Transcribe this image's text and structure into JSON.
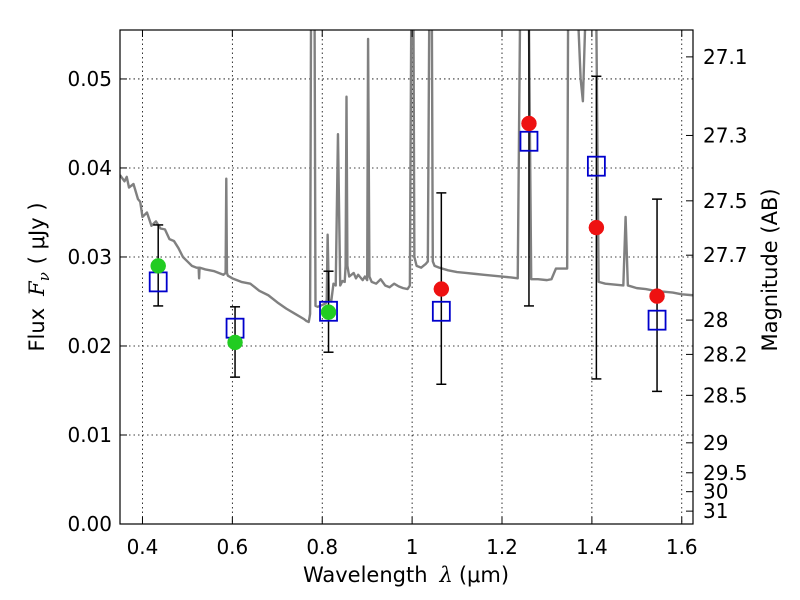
{
  "chart_data": {
    "type": "scatter",
    "title": "",
    "xlabel": "Wavelength",
    "xlabel_symbol": "λ",
    "xlabel_unit": "(μm)",
    "ylabel": "Flux",
    "ylabel_symbol": "F",
    "ylabel_subscript": "ν",
    "ylabel_unit": "( μJy )",
    "y2label": "Magnitude (AB)",
    "xlim": [
      0.35,
      1.625
    ],
    "ylim": [
      0.0,
      0.0555
    ],
    "grid": true,
    "x_ticks": [
      0.4,
      0.6,
      0.8,
      1.0,
      1.2,
      1.4,
      1.6
    ],
    "x_tick_labels": [
      "0.4",
      "0.6",
      "0.8",
      "1",
      "1.2",
      "1.4",
      "1.6"
    ],
    "y_ticks": [
      0.0,
      0.01,
      0.02,
      0.03,
      0.04,
      0.05
    ],
    "y_tick_labels": [
      "0.00",
      "0.01",
      "0.02",
      "0.03",
      "0.04",
      "0.05"
    ],
    "y2_ticks": [
      {
        "label": "27.1",
        "mag": 27.1
      },
      {
        "label": "27.3",
        "mag": 27.3
      },
      {
        "label": "27.5",
        "mag": 27.5
      },
      {
        "label": "27.7",
        "mag": 27.7
      },
      {
        "label": "28",
        "mag": 28.0
      },
      {
        "label": "28.2",
        "mag": 28.2
      },
      {
        "label": "28.5",
        "mag": 28.5
      },
      {
        "label": "29",
        "mag": 29.0
      },
      {
        "label": "29.5",
        "mag": 29.5
      },
      {
        "label": "30",
        "mag": 30.0
      },
      {
        "label": "31",
        "mag": 31.0
      }
    ],
    "colors": {
      "model": "#808080",
      "green": "#22cc22",
      "red": "#ee1111",
      "square": "#0000cc",
      "errorbar": "#000000"
    },
    "model_spectrum": [
      [
        0.35,
        0.0392
      ],
      [
        0.36,
        0.0385
      ],
      [
        0.365,
        0.039
      ],
      [
        0.37,
        0.0378
      ],
      [
        0.38,
        0.0382
      ],
      [
        0.39,
        0.0365
      ],
      [
        0.395,
        0.0362
      ],
      [
        0.4,
        0.0345
      ],
      [
        0.41,
        0.035
      ],
      [
        0.42,
        0.0335
      ],
      [
        0.43,
        0.034
      ],
      [
        0.44,
        0.0332
      ],
      [
        0.45,
        0.0331
      ],
      [
        0.46,
        0.032
      ],
      [
        0.47,
        0.0318
      ],
      [
        0.48,
        0.031
      ],
      [
        0.49,
        0.03
      ],
      [
        0.5,
        0.0295
      ],
      [
        0.51,
        0.029
      ],
      [
        0.52,
        0.0288
      ],
      [
        0.525,
        0.0288
      ],
      [
        0.526,
        0.0276
      ],
      [
        0.527,
        0.0288
      ],
      [
        0.54,
        0.0286
      ],
      [
        0.56,
        0.0284
      ],
      [
        0.57,
        0.0282
      ],
      [
        0.58,
        0.028
      ],
      [
        0.585,
        0.0282
      ],
      [
        0.5865,
        0.0388
      ],
      [
        0.588,
        0.0282
      ],
      [
        0.59,
        0.0279
      ],
      [
        0.6,
        0.0276
      ],
      [
        0.62,
        0.0272
      ],
      [
        0.64,
        0.027
      ],
      [
        0.66,
        0.0262
      ],
      [
        0.68,
        0.0257
      ],
      [
        0.7,
        0.0249
      ],
      [
        0.72,
        0.0242
      ],
      [
        0.74,
        0.0236
      ],
      [
        0.76,
        0.023
      ],
      [
        0.765,
        0.0228
      ],
      [
        0.77,
        0.0227
      ],
      [
        0.773,
        0.0236
      ],
      [
        0.775,
        0.056
      ],
      [
        0.783,
        0.056
      ],
      [
        0.785,
        0.0245
      ],
      [
        0.79,
        0.0244
      ],
      [
        0.8,
        0.0246
      ],
      [
        0.808,
        0.0248
      ],
      [
        0.81,
        0.0252
      ],
      [
        0.812,
        0.0325
      ],
      [
        0.815,
        0.0252
      ],
      [
        0.82,
        0.025
      ],
      [
        0.825,
        0.027
      ],
      [
        0.83,
        0.0268
      ],
      [
        0.835,
        0.0438
      ],
      [
        0.84,
        0.0268
      ],
      [
        0.845,
        0.0273
      ],
      [
        0.85,
        0.0272
      ],
      [
        0.852,
        0.029
      ],
      [
        0.854,
        0.048
      ],
      [
        0.856,
        0.029
      ],
      [
        0.86,
        0.0278
      ],
      [
        0.87,
        0.0282
      ],
      [
        0.875,
        0.0276
      ],
      [
        0.88,
        0.028
      ],
      [
        0.89,
        0.0274
      ],
      [
        0.895,
        0.0278
      ],
      [
        0.9,
        0.0274
      ],
      [
        0.902,
        0.0545
      ],
      [
        0.905,
        0.0278
      ],
      [
        0.91,
        0.0272
      ],
      [
        0.92,
        0.027
      ],
      [
        0.93,
        0.0275
      ],
      [
        0.94,
        0.0268
      ],
      [
        0.95,
        0.0266
      ],
      [
        0.96,
        0.027
      ],
      [
        0.97,
        0.0267
      ],
      [
        0.98,
        0.0265
      ],
      [
        0.99,
        0.0264
      ],
      [
        0.995,
        0.0268
      ],
      [
        0.998,
        0.056
      ],
      [
        1.003,
        0.056
      ],
      [
        1.005,
        0.03
      ],
      [
        1.01,
        0.029
      ],
      [
        1.02,
        0.0288
      ],
      [
        1.03,
        0.0292
      ],
      [
        1.035,
        0.0295
      ],
      [
        1.038,
        0.056
      ],
      [
        1.044,
        0.056
      ],
      [
        1.046,
        0.0295
      ],
      [
        1.05,
        0.029
      ],
      [
        1.06,
        0.0288
      ],
      [
        1.08,
        0.0285
      ],
      [
        1.1,
        0.0283
      ],
      [
        1.12,
        0.0282
      ],
      [
        1.14,
        0.0281
      ],
      [
        1.16,
        0.028
      ],
      [
        1.18,
        0.0279
      ],
      [
        1.2,
        0.0278
      ],
      [
        1.22,
        0.0277
      ],
      [
        1.235,
        0.0276
      ],
      [
        1.24,
        0.056
      ],
      [
        1.26,
        0.056
      ],
      [
        1.265,
        0.0275
      ],
      [
        1.28,
        0.0275
      ],
      [
        1.3,
        0.0274
      ],
      [
        1.31,
        0.0275
      ],
      [
        1.32,
        0.0287
      ],
      [
        1.34,
        0.0287
      ],
      [
        1.345,
        0.0287
      ],
      [
        1.347,
        0.056
      ],
      [
        1.37,
        0.056
      ],
      [
        1.375,
        0.05
      ],
      [
        1.38,
        0.0475
      ],
      [
        1.385,
        0.056
      ],
      [
        1.41,
        0.056
      ],
      [
        1.415,
        0.0272
      ],
      [
        1.43,
        0.027
      ],
      [
        1.45,
        0.0269
      ],
      [
        1.47,
        0.0268
      ],
      [
        1.475,
        0.0345
      ],
      [
        1.48,
        0.0268
      ],
      [
        1.5,
        0.0265
      ],
      [
        1.52,
        0.0264
      ],
      [
        1.54,
        0.0262
      ],
      [
        1.56,
        0.0261
      ],
      [
        1.58,
        0.026
      ],
      [
        1.6,
        0.0258
      ],
      [
        1.625,
        0.0257
      ]
    ],
    "series": [
      {
        "marker": "square-open",
        "color": "#0000cc",
        "points": [
          {
            "x": 0.435,
            "y": 0.0272
          },
          {
            "x": 0.606,
            "y": 0.022
          },
          {
            "x": 0.814,
            "y": 0.0239
          },
          {
            "x": 1.065,
            "y": 0.0239
          },
          {
            "x": 1.26,
            "y": 0.043
          },
          {
            "x": 1.41,
            "y": 0.0402
          },
          {
            "x": 1.545,
            "y": 0.0229
          }
        ]
      },
      {
        "marker": "circle",
        "color": "#22cc22",
        "points": [
          {
            "x": 0.435,
            "y": 0.029,
            "err_low": 0.0245,
            "err_high": 0.0336
          },
          {
            "x": 0.606,
            "y": 0.0204,
            "err_low": 0.0165,
            "err_high": 0.0244
          },
          {
            "x": 0.814,
            "y": 0.0238,
            "err_low": 0.0193,
            "err_high": 0.0284
          }
        ]
      },
      {
        "marker": "circle",
        "color": "#ee1111",
        "points": [
          {
            "x": 1.065,
            "y": 0.0264,
            "err_low": 0.0157,
            "err_high": 0.0372
          },
          {
            "x": 1.26,
            "y": 0.045,
            "err_low": 0.0245,
            "err_high": 0.056
          },
          {
            "x": 1.41,
            "y": 0.0333,
            "err_low": 0.0163,
            "err_high": 0.0503
          },
          {
            "x": 1.545,
            "y": 0.0256,
            "err_low": 0.0149,
            "err_high": 0.0365
          }
        ]
      }
    ]
  }
}
